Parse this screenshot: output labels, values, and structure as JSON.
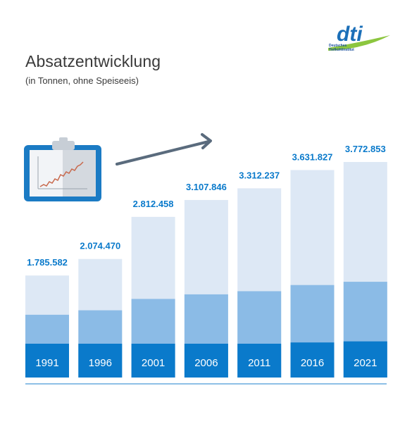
{
  "header": {
    "title": "Absatzentwicklung",
    "subtitle": "(in Tonnen, ohne Speiseeis)"
  },
  "logo": {
    "wordmark": "dti",
    "line1": "Deutsches",
    "line2": "Tiefkühlinstitut",
    "colors": {
      "blue": "#1b6fb8",
      "green": "#8cc63f"
    }
  },
  "icons": [
    "clipboard-chart-icon",
    "trend-arrow-icon"
  ],
  "colors": {
    "bar_light": "#dde8f5",
    "bar_mid": "#8bbbe6",
    "bar_dark": "#0a7acb",
    "label_blue": "#0a7acb",
    "baseline": "#4a9bd8",
    "arrow": "#5a6b7d"
  },
  "chart_data": {
    "type": "bar",
    "title": "Absatzentwicklung",
    "subtitle": "(in Tonnen, ohne Speiseeis)",
    "categories": [
      "1991",
      "1996",
      "2001",
      "2006",
      "2011",
      "2016",
      "2021"
    ],
    "values": [
      1785582,
      2074470,
      2812458,
      3107846,
      3312237,
      3631827,
      3772853
    ],
    "value_labels": [
      "1.785.582",
      "2.074.470",
      "2.812.458",
      "3.107.846",
      "3.312.237",
      "3.631.827",
      "3.772.853"
    ],
    "stacked_segments": "three tonal blue layers per bar (light / medium / dark), segment values not printed",
    "xlabel": "",
    "ylabel": "",
    "ylim": [
      0,
      4000000
    ],
    "grid": false,
    "legend": "none"
  }
}
